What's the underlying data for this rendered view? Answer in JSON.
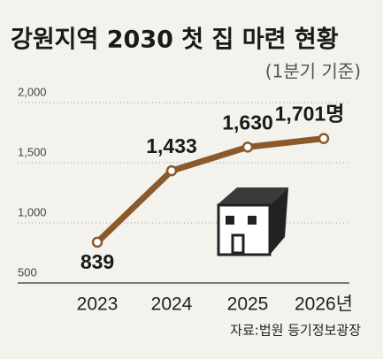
{
  "chart_data": {
    "type": "line",
    "title": "강원지역 2030 첫 집 마련 현황",
    "subtitle": "(1분기 기준)",
    "source": "자료:법원 등기정보광장",
    "categories": [
      "2023",
      "2024",
      "2025",
      "2026년"
    ],
    "values": [
      839,
      1433,
      1630,
      1701
    ],
    "value_labels": [
      "839",
      "1,433",
      "1,630",
      "1,701명"
    ],
    "color": "#8b5a2b",
    "ylim": [
      500,
      2000
    ],
    "yticks": [
      500,
      {
        "value": 1000,
        "label": "1,000"
      },
      {
        "value": 1500,
        "label": "1,500"
      },
      {
        "value": 2000,
        "label": "2,000"
      }
    ],
    "grid": true
  }
}
